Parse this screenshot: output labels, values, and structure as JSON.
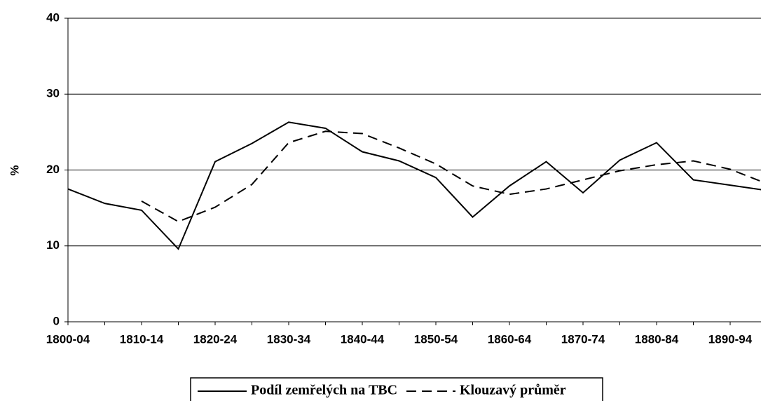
{
  "chart_data": {
    "type": "line",
    "ylabel": "%",
    "categories": [
      "1800-04",
      null,
      "1810-14",
      null,
      "1820-24",
      null,
      "1830-34",
      null,
      "1840-44",
      null,
      "1850-54",
      null,
      "1860-64",
      null,
      "1870-74",
      null,
      "1880-84",
      null,
      "1890-94",
      null
    ],
    "series": [
      {
        "name": "Podíl zemřelých na TBC",
        "color": "#000000",
        "dash": "solid",
        "values": [
          17.5,
          15.6,
          14.7,
          9.6,
          21.1,
          23.5,
          26.3,
          25.5,
          22.4,
          21.2,
          19.0,
          13.8,
          17.9,
          21.1,
          17.0,
          21.3,
          23.6,
          18.7,
          18.0,
          17.3
        ]
      },
      {
        "name": "Klouzavý průměr",
        "color": "#000000",
        "dash": "dashed",
        "values": [
          null,
          null,
          15.9,
          13.2,
          15.1,
          18.1,
          23.6,
          25.1,
          24.8,
          22.9,
          20.8,
          17.9,
          16.8,
          17.5,
          18.7,
          19.9,
          20.7,
          21.2,
          20.1,
          18.2
        ]
      }
    ],
    "ylim": [
      0,
      40
    ],
    "yticks": [
      0,
      10,
      20,
      30,
      40
    ],
    "grid": true,
    "legend": "bottom"
  }
}
